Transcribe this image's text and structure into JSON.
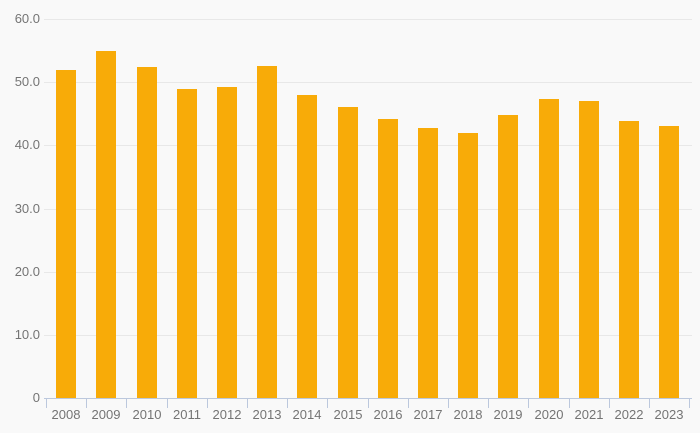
{
  "chart": {
    "background_color": "#f9f9f9",
    "bar_color": "#f8ab08",
    "gridline_color": "#e8e8e8",
    "axis_color": "#bcc8dd",
    "label_color": "#747474"
  },
  "chart_data": {
    "type": "bar",
    "title": "",
    "xlabel": "",
    "ylabel": "",
    "categories": [
      "2008",
      "2009",
      "2010",
      "2011",
      "2012",
      "2013",
      "2014",
      "2015",
      "2016",
      "2017",
      "2018",
      "2019",
      "2020",
      "2021",
      "2022",
      "2023"
    ],
    "values": [
      52.0,
      55.0,
      52.4,
      48.9,
      49.2,
      52.5,
      48.0,
      46.0,
      44.2,
      42.8,
      42.0,
      44.8,
      47.4,
      47.0,
      43.9,
      43.0
    ],
    "ylim": [
      0,
      60
    ],
    "ytick_values": [
      60,
      50,
      40,
      30,
      20,
      10,
      0
    ],
    "ytick_labels": [
      "60.0",
      "50.0",
      "40.0",
      "30.0",
      "20.0",
      "10.0",
      "0"
    ],
    "grid": true,
    "legend": false,
    "legend_entries": []
  }
}
